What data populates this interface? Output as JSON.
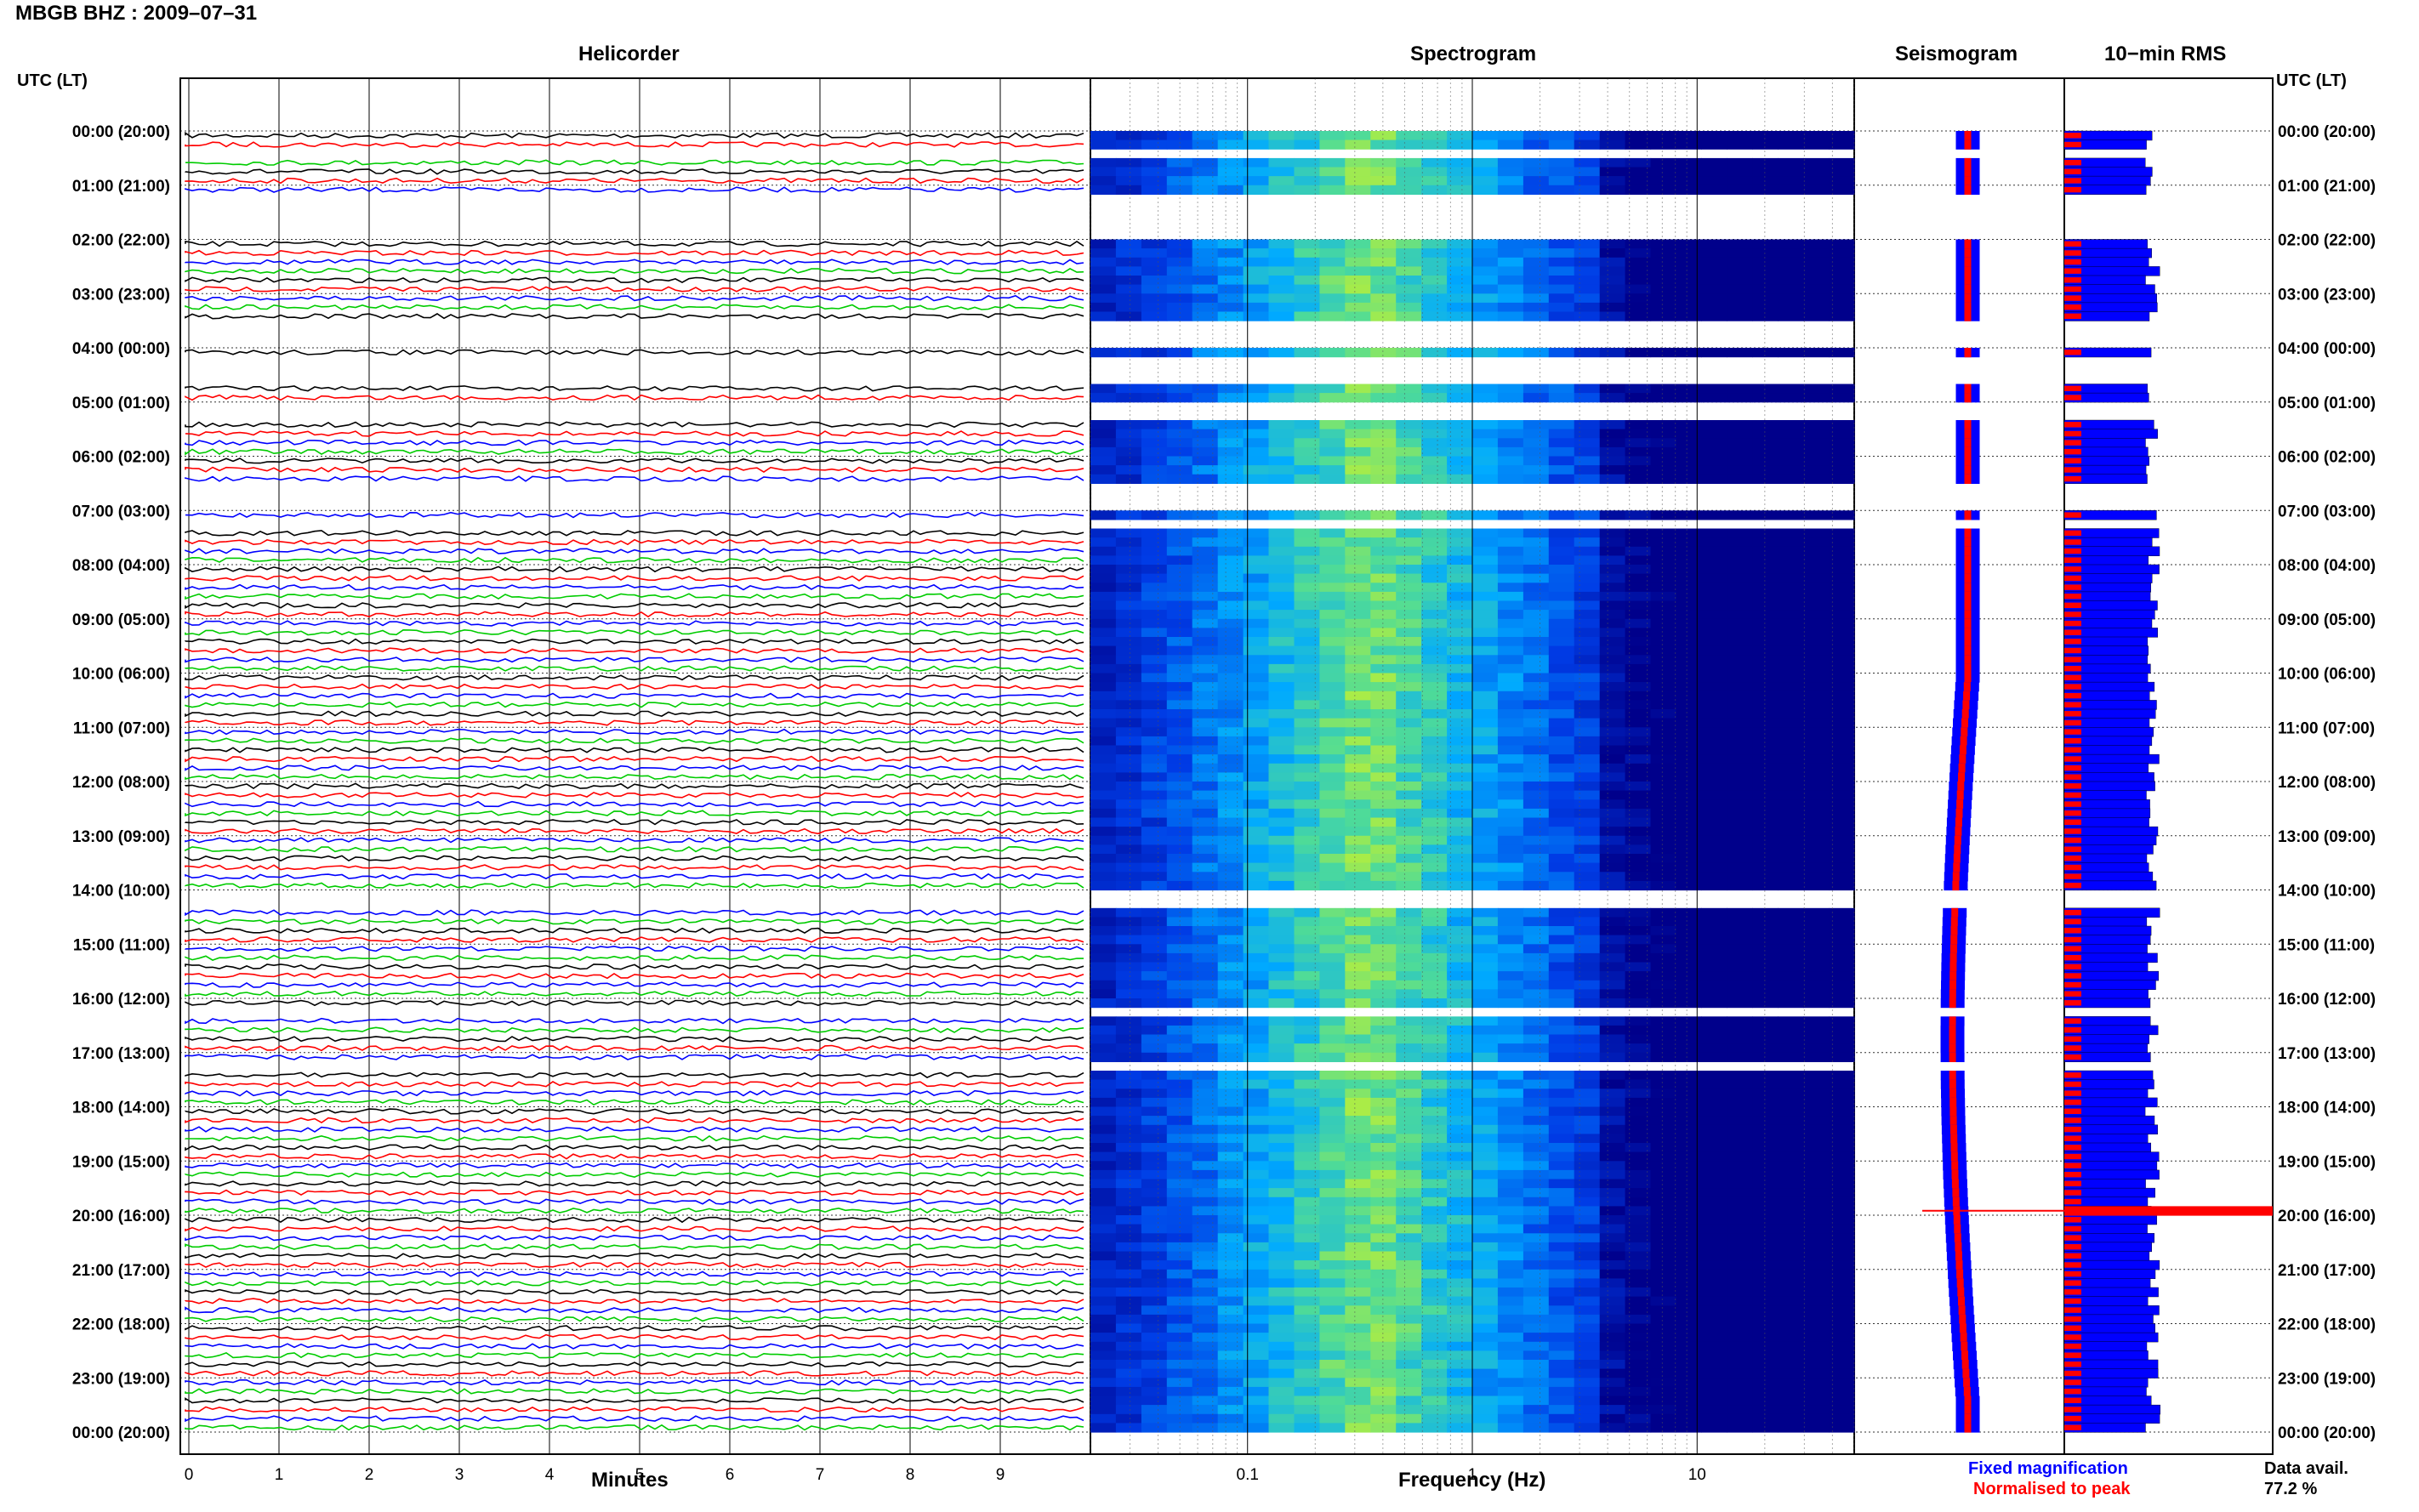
{
  "header": {
    "title": "MBGB BHZ : 2009–07–31"
  },
  "panels": {
    "helicorder": "Helicorder",
    "spectrogram": "Spectrogram",
    "seismogram": "Seismogram",
    "rms": "10−min RMS"
  },
  "axis_headers": {
    "left": "UTC (LT)",
    "right": "UTC (LT)"
  },
  "footer": {
    "legend_fixed": "Fixed magnification",
    "legend_normalised": "Normalised to peak",
    "data_avail_label": "Data avail.",
    "data_avail_value": "77.2 %"
  },
  "colors": {
    "trace_cycle": [
      "#000000",
      "#ff0000",
      "#0000ff",
      "#00cc00"
    ],
    "fixed_magnification": "#0000ff",
    "normalised_to_peak": "#ff0000",
    "spectrogram_low": "#00008b",
    "spectrogram_high": "#ffff00"
  },
  "chart_data": [
    {
      "type": "line",
      "title": "Helicorder",
      "xlabel": "Minutes",
      "ylabel": "UTC (LT)",
      "x_ticks": [
        "0",
        "1",
        "2",
        "3",
        "4",
        "5",
        "6",
        "7",
        "8",
        "9"
      ],
      "xlim": [
        0,
        10
      ],
      "y_ticks": [
        "00:00 (20:00)",
        "01:00 (21:00)",
        "02:00 (22:00)",
        "03:00 (23:00)",
        "04:00 (00:00)",
        "05:00 (01:00)",
        "06:00 (02:00)",
        "07:00 (03:00)",
        "08:00 (04:00)",
        "09:00 (05:00)",
        "10:00 (06:00)",
        "11:00 (07:00)",
        "12:00 (08:00)",
        "13:00 (09:00)",
        "14:00 (10:00)",
        "15:00 (11:00)",
        "16:00 (12:00)",
        "17:00 (13:00)",
        "18:00 (14:00)",
        "19:00 (15:00)",
        "20:00 (16:00)",
        "21:00 (17:00)",
        "22:00 (18:00)",
        "23:00 (19:00)",
        "00:00 (20:00)"
      ],
      "grid": true,
      "rows_per_hour": 6,
      "rows_with_data": [
        0,
        1,
        3,
        4,
        5,
        6,
        12,
        13,
        14,
        15,
        16,
        17,
        18,
        19,
        20,
        24,
        28,
        29,
        32,
        33,
        34,
        35,
        36,
        37,
        38,
        42,
        44,
        45,
        46,
        47,
        48,
        49,
        50,
        51,
        52,
        53,
        54,
        55,
        56,
        57,
        58,
        59,
        60,
        61,
        62,
        63,
        64,
        65,
        66,
        67,
        68,
        69,
        70,
        71,
        72,
        73,
        74,
        75,
        76,
        77,
        78,
        79,
        80,
        81,
        82,
        83,
        86,
        87,
        88,
        89,
        90,
        91,
        92,
        93,
        94,
        95,
        96,
        98,
        99,
        100,
        101,
        102,
        104,
        105,
        106,
        107,
        108,
        109,
        110,
        111,
        112,
        113,
        114,
        115,
        116,
        117,
        118,
        119,
        120,
        121,
        122,
        123,
        124,
        125,
        126,
        127,
        128,
        129,
        130,
        131,
        132,
        133,
        134,
        135,
        136,
        137,
        138,
        139,
        140,
        141,
        142,
        143
      ]
    },
    {
      "type": "heatmap",
      "title": "Spectrogram",
      "xlabel": "Frequency (Hz)",
      "x_scale": "log",
      "xlim": [
        0.02,
        50
      ],
      "x_ticks": [
        "0.1",
        "1",
        "10"
      ],
      "peak_band_hz": [
        0.2,
        0.6
      ],
      "grid": true
    },
    {
      "type": "line",
      "title": "Seismogram",
      "series": [
        {
          "name": "Fixed magnification",
          "color": "#0000ff"
        },
        {
          "name": "Normalised to peak",
          "color": "#ff0000"
        }
      ]
    },
    {
      "type": "bar",
      "title": "10−min RMS",
      "orientation": "horizontal",
      "series": [
        {
          "name": "Fixed magnification",
          "color": "#0000ff"
        },
        {
          "name": "Normalised to peak",
          "color": "#ff0000"
        }
      ],
      "peak_row_time_utc": "19:50"
    }
  ]
}
